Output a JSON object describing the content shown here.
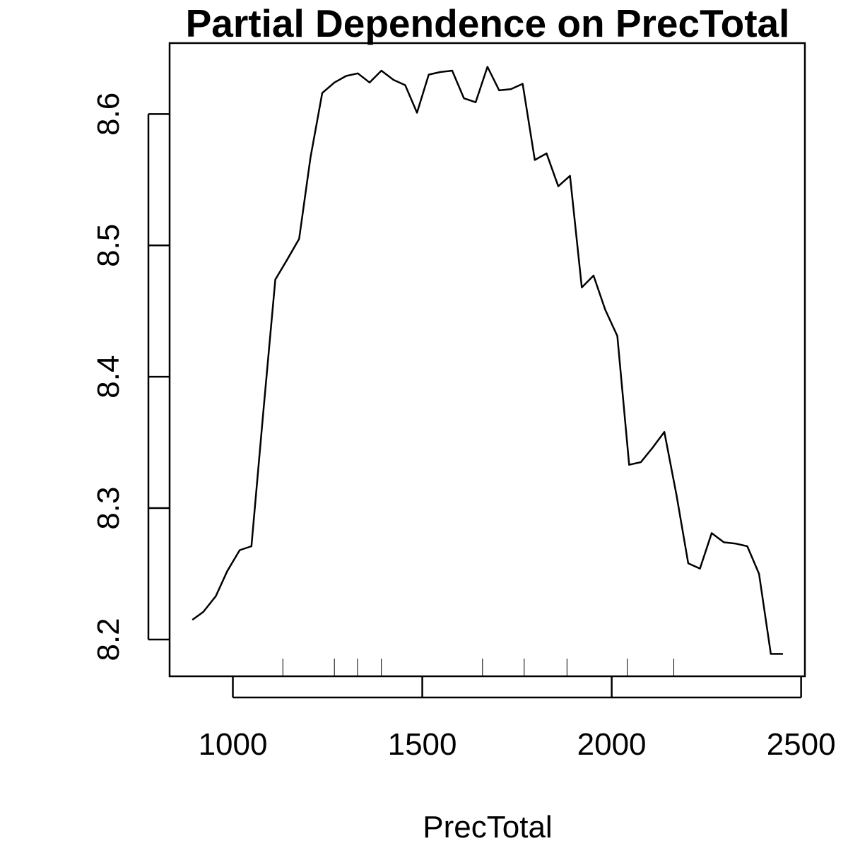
{
  "chart_data": {
    "type": "line",
    "title": "Partial Dependence on PrecTotal",
    "xlabel": "PrecTotal",
    "ylabel": "",
    "xlim": [
      833,
      2510
    ],
    "ylim": [
      8.172,
      8.654
    ],
    "x_ticks": [
      1000,
      1500,
      2000,
      2500
    ],
    "x_tick_labels": [
      "1000",
      "1500",
      "2000",
      "2500"
    ],
    "y_ticks": [
      8.2,
      8.3,
      8.4,
      8.5,
      8.6
    ],
    "y_tick_labels": [
      "8.2",
      "8.3",
      "8.4",
      "8.5",
      "8.6"
    ],
    "grid": false,
    "legend": "none",
    "line_color": "#000000",
    "series": [
      {
        "x": [
          893,
          922,
          955,
          985,
          1018,
          1049,
          1080,
          1112,
          1143,
          1175,
          1205,
          1236,
          1268,
          1299,
          1330,
          1361,
          1392,
          1424,
          1455,
          1486,
          1517,
          1548,
          1579,
          1610,
          1641,
          1672,
          1703,
          1734,
          1765,
          1797,
          1828,
          1859,
          1890,
          1921,
          1952,
          1983,
          2015,
          2046,
          2077,
          2108,
          2139,
          2171,
          2202,
          2233,
          2264,
          2296,
          2327,
          2358,
          2389,
          2420,
          2452
        ],
        "y": [
          8.215,
          8.221,
          8.233,
          8.252,
          8.268,
          8.271,
          8.372,
          8.474,
          8.489,
          8.505,
          8.567,
          8.616,
          8.624,
          8.629,
          8.631,
          8.624,
          8.633,
          8.626,
          8.622,
          8.601,
          8.63,
          8.632,
          8.633,
          8.612,
          8.609,
          8.636,
          8.618,
          8.619,
          8.623,
          8.565,
          8.57,
          8.545,
          8.553,
          8.468,
          8.477,
          8.451,
          8.431,
          8.333,
          8.335,
          8.346,
          8.358,
          8.31,
          8.258,
          8.254,
          8.281,
          8.274,
          8.273,
          8.271,
          8.25,
          8.189,
          8.189
        ]
      }
    ],
    "rug": [
      1132,
      1268,
      1329,
      1392,
      1659,
      1769,
      1882,
      2041,
      2164
    ]
  }
}
